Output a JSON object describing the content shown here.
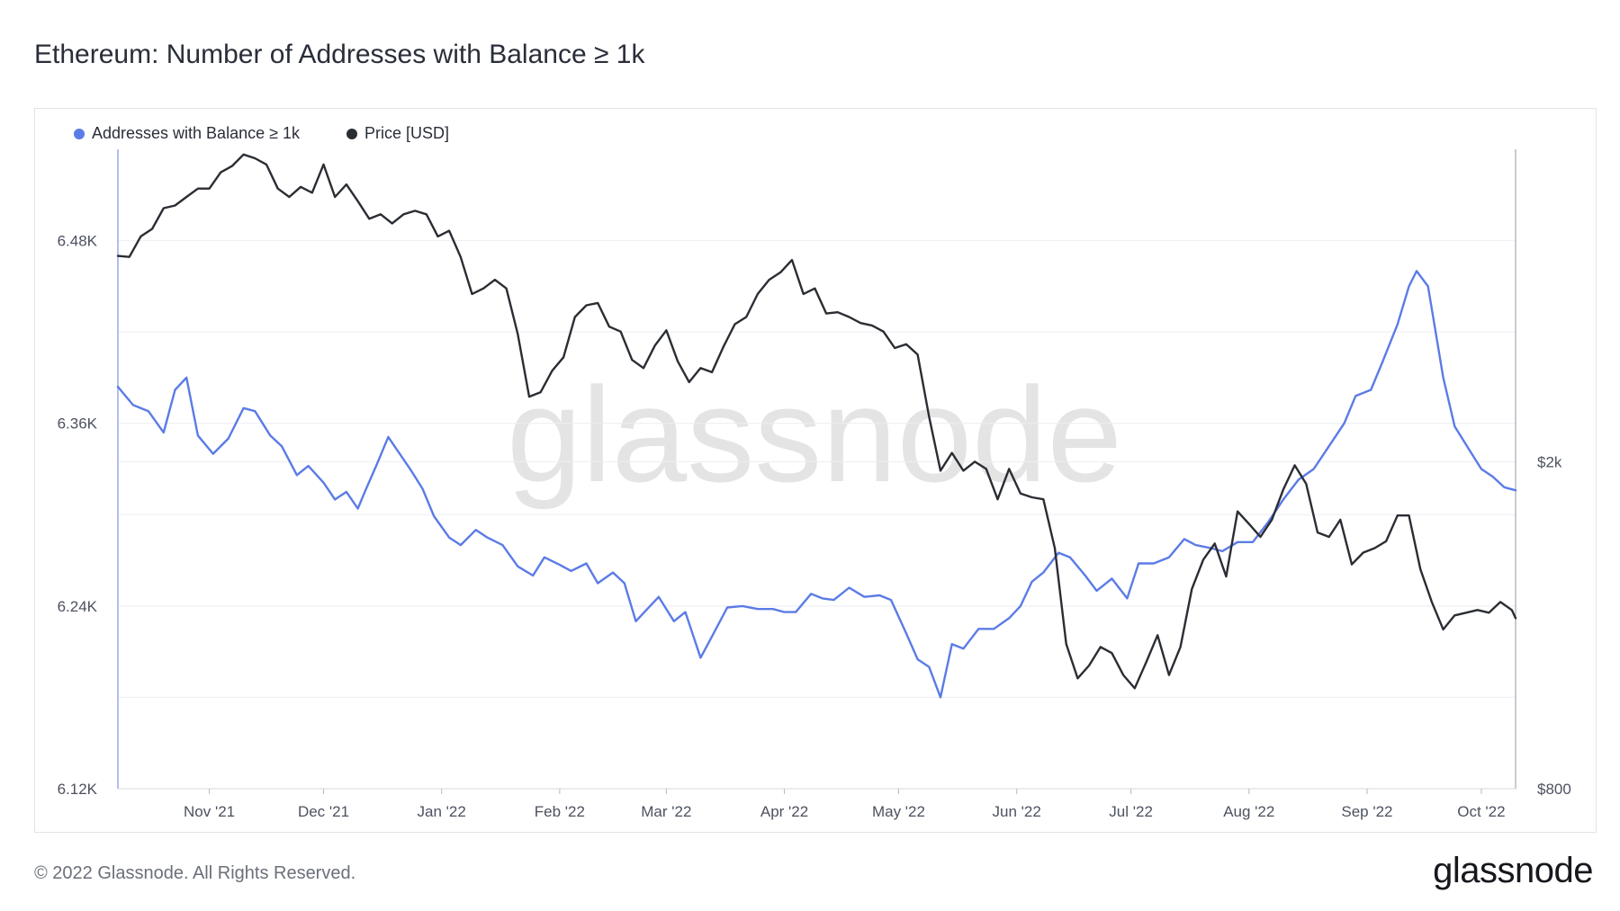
{
  "title": "Ethereum: Number of Addresses with Balance ≥ 1k",
  "footer": {
    "copyright": "© 2022 Glassnode. All Rights Reserved.",
    "brand": "glassnode"
  },
  "watermark": "glassnode",
  "colors": {
    "addresses": "#5b7be6",
    "price": "#2a2d33",
    "grid": "#eceef2",
    "axis_text": "#4d5160"
  },
  "chart_data": {
    "type": "line",
    "title": "Ethereum: Number of Addresses with Balance ≥ 1k",
    "x_start": "2021-10-08",
    "x_end": "2022-10-10",
    "x_ticks": [
      {
        "label": "Nov '21",
        "date": "2021-11-01"
      },
      {
        "label": "Dec '21",
        "date": "2021-12-01"
      },
      {
        "label": "Jan '22",
        "date": "2022-01-01"
      },
      {
        "label": "Feb '22",
        "date": "2022-02-01"
      },
      {
        "label": "Mar '22",
        "date": "2022-03-01"
      },
      {
        "label": "Apr '22",
        "date": "2022-04-01"
      },
      {
        "label": "May '22",
        "date": "2022-05-01"
      },
      {
        "label": "Jun '22",
        "date": "2022-06-01"
      },
      {
        "label": "Jul '22",
        "date": "2022-07-01"
      },
      {
        "label": "Aug '22",
        "date": "2022-08-01"
      },
      {
        "label": "Sep '22",
        "date": "2022-09-01"
      },
      {
        "label": "Oct '22",
        "date": "2022-10-01"
      }
    ],
    "y_left": {
      "ticks": [
        "6.12K",
        "6.24K",
        "6.36K",
        "6.48K"
      ],
      "tick_values": [
        6120,
        6240,
        6360,
        6480
      ],
      "range": [
        6120,
        6540
      ]
    },
    "y_right": {
      "ticks": [
        "$800",
        "$2k"
      ],
      "tick_values": [
        800,
        2000
      ],
      "scale": "log",
      "range": [
        800,
        4800
      ]
    },
    "legend_position": "top-left",
    "series": [
      {
        "name": "Addresses with Balance ≥ 1k",
        "axis": "left",
        "color": "#5b7be6",
        "points": [
          [
            "2021-10-08",
            6384
          ],
          [
            "2021-10-12",
            6372
          ],
          [
            "2021-10-16",
            6368
          ],
          [
            "2021-10-20",
            6354
          ],
          [
            "2021-10-23",
            6382
          ],
          [
            "2021-10-26",
            6390
          ],
          [
            "2021-10-29",
            6352
          ],
          [
            "2021-11-02",
            6340
          ],
          [
            "2021-11-06",
            6350
          ],
          [
            "2021-11-10",
            6370
          ],
          [
            "2021-11-13",
            6368
          ],
          [
            "2021-11-17",
            6352
          ],
          [
            "2021-11-20",
            6345
          ],
          [
            "2021-11-24",
            6326
          ],
          [
            "2021-11-27",
            6332
          ],
          [
            "2021-12-01",
            6321
          ],
          [
            "2021-12-04",
            6310
          ],
          [
            "2021-12-07",
            6315
          ],
          [
            "2021-12-10",
            6304
          ],
          [
            "2021-12-12",
            6316
          ],
          [
            "2021-12-15",
            6333
          ],
          [
            "2021-12-18",
            6351
          ],
          [
            "2021-12-21",
            6340
          ],
          [
            "2021-12-24",
            6329
          ],
          [
            "2021-12-27",
            6317
          ],
          [
            "2021-12-30",
            6299
          ],
          [
            "2022-01-03",
            6285
          ],
          [
            "2022-01-06",
            6280
          ],
          [
            "2022-01-10",
            6290
          ],
          [
            "2022-01-13",
            6285
          ],
          [
            "2022-01-17",
            6280
          ],
          [
            "2022-01-21",
            6266
          ],
          [
            "2022-01-25",
            6260
          ],
          [
            "2022-01-28",
            6272
          ],
          [
            "2022-02-01",
            6267
          ],
          [
            "2022-02-04",
            6263
          ],
          [
            "2022-02-08",
            6268
          ],
          [
            "2022-02-11",
            6255
          ],
          [
            "2022-02-15",
            6262
          ],
          [
            "2022-02-18",
            6255
          ],
          [
            "2022-02-21",
            6230
          ],
          [
            "2022-02-24",
            6238
          ],
          [
            "2022-02-27",
            6246
          ],
          [
            "2022-03-03",
            6230
          ],
          [
            "2022-03-06",
            6236
          ],
          [
            "2022-03-10",
            6206
          ],
          [
            "2022-03-13",
            6220
          ],
          [
            "2022-03-17",
            6239
          ],
          [
            "2022-03-21",
            6240
          ],
          [
            "2022-03-25",
            6238
          ],
          [
            "2022-03-29",
            6238
          ],
          [
            "2022-04-01",
            6236
          ],
          [
            "2022-04-04",
            6236
          ],
          [
            "2022-04-08",
            6248
          ],
          [
            "2022-04-11",
            6245
          ],
          [
            "2022-04-14",
            6244
          ],
          [
            "2022-04-18",
            6252
          ],
          [
            "2022-04-22",
            6246
          ],
          [
            "2022-04-26",
            6247
          ],
          [
            "2022-04-29",
            6244
          ],
          [
            "2022-05-03",
            6222
          ],
          [
            "2022-05-06",
            6205
          ],
          [
            "2022-05-09",
            6200
          ],
          [
            "2022-05-12",
            6180
          ],
          [
            "2022-05-15",
            6215
          ],
          [
            "2022-05-18",
            6212
          ],
          [
            "2022-05-22",
            6225
          ],
          [
            "2022-05-26",
            6225
          ],
          [
            "2022-05-30",
            6232
          ],
          [
            "2022-06-02",
            6240
          ],
          [
            "2022-06-05",
            6256
          ],
          [
            "2022-06-08",
            6262
          ],
          [
            "2022-06-12",
            6275
          ],
          [
            "2022-06-15",
            6272
          ],
          [
            "2022-06-19",
            6260
          ],
          [
            "2022-06-22",
            6250
          ],
          [
            "2022-06-26",
            6258
          ],
          [
            "2022-06-30",
            6245
          ],
          [
            "2022-07-03",
            6268
          ],
          [
            "2022-07-07",
            6268
          ],
          [
            "2022-07-11",
            6272
          ],
          [
            "2022-07-15",
            6284
          ],
          [
            "2022-07-18",
            6280
          ],
          [
            "2022-07-22",
            6278
          ],
          [
            "2022-07-25",
            6276
          ],
          [
            "2022-07-29",
            6282
          ],
          [
            "2022-08-02",
            6282
          ],
          [
            "2022-08-06",
            6295
          ],
          [
            "2022-08-10",
            6310
          ],
          [
            "2022-08-14",
            6323
          ],
          [
            "2022-08-18",
            6330
          ],
          [
            "2022-08-22",
            6345
          ],
          [
            "2022-08-26",
            6360
          ],
          [
            "2022-08-29",
            6378
          ],
          [
            "2022-09-02",
            6382
          ],
          [
            "2022-09-05",
            6400
          ],
          [
            "2022-09-09",
            6425
          ],
          [
            "2022-09-12",
            6450
          ],
          [
            "2022-09-14",
            6460
          ],
          [
            "2022-09-17",
            6450
          ],
          [
            "2022-09-21",
            6390
          ],
          [
            "2022-09-24",
            6358
          ],
          [
            "2022-09-28",
            6342
          ],
          [
            "2022-10-01",
            6330
          ],
          [
            "2022-10-04",
            6325
          ],
          [
            "2022-10-07",
            6318
          ],
          [
            "2022-10-10",
            6316
          ]
        ]
      },
      {
        "name": "Price [USD]",
        "axis": "right",
        "color": "#2a2d33",
        "points": [
          [
            "2021-10-08",
            3560
          ],
          [
            "2021-10-11",
            3550
          ],
          [
            "2021-10-14",
            3760
          ],
          [
            "2021-10-17",
            3840
          ],
          [
            "2021-10-20",
            4070
          ],
          [
            "2021-10-23",
            4100
          ],
          [
            "2021-10-26",
            4200
          ],
          [
            "2021-10-29",
            4300
          ],
          [
            "2021-11-01",
            4300
          ],
          [
            "2021-11-04",
            4500
          ],
          [
            "2021-11-07",
            4580
          ],
          [
            "2021-11-10",
            4730
          ],
          [
            "2021-11-13",
            4680
          ],
          [
            "2021-11-16",
            4600
          ],
          [
            "2021-11-19",
            4300
          ],
          [
            "2021-11-22",
            4200
          ],
          [
            "2021-11-25",
            4320
          ],
          [
            "2021-11-28",
            4250
          ],
          [
            "2021-12-01",
            4600
          ],
          [
            "2021-12-04",
            4200
          ],
          [
            "2021-12-07",
            4350
          ],
          [
            "2021-12-10",
            4150
          ],
          [
            "2021-12-13",
            3950
          ],
          [
            "2021-12-16",
            4000
          ],
          [
            "2021-12-19",
            3900
          ],
          [
            "2021-12-22",
            4000
          ],
          [
            "2021-12-25",
            4040
          ],
          [
            "2021-12-28",
            4000
          ],
          [
            "2021-12-31",
            3760
          ],
          [
            "2022-01-03",
            3820
          ],
          [
            "2022-01-06",
            3550
          ],
          [
            "2022-01-09",
            3200
          ],
          [
            "2022-01-12",
            3250
          ],
          [
            "2022-01-15",
            3330
          ],
          [
            "2022-01-18",
            3250
          ],
          [
            "2022-01-21",
            2860
          ],
          [
            "2022-01-24",
            2400
          ],
          [
            "2022-01-27",
            2430
          ],
          [
            "2022-01-30",
            2580
          ],
          [
            "2022-02-02",
            2680
          ],
          [
            "2022-02-05",
            3000
          ],
          [
            "2022-02-08",
            3100
          ],
          [
            "2022-02-11",
            3120
          ],
          [
            "2022-02-14",
            2920
          ],
          [
            "2022-02-17",
            2880
          ],
          [
            "2022-02-20",
            2660
          ],
          [
            "2022-02-23",
            2600
          ],
          [
            "2022-02-26",
            2770
          ],
          [
            "2022-03-01",
            2890
          ],
          [
            "2022-03-04",
            2650
          ],
          [
            "2022-03-07",
            2500
          ],
          [
            "2022-03-10",
            2600
          ],
          [
            "2022-03-13",
            2570
          ],
          [
            "2022-03-16",
            2760
          ],
          [
            "2022-03-19",
            2940
          ],
          [
            "2022-03-22",
            3000
          ],
          [
            "2022-03-25",
            3200
          ],
          [
            "2022-03-28",
            3330
          ],
          [
            "2022-03-31",
            3400
          ],
          [
            "2022-04-03",
            3520
          ],
          [
            "2022-04-06",
            3200
          ],
          [
            "2022-04-09",
            3250
          ],
          [
            "2022-04-12",
            3030
          ],
          [
            "2022-04-15",
            3040
          ],
          [
            "2022-04-18",
            3000
          ],
          [
            "2022-04-21",
            2950
          ],
          [
            "2022-04-24",
            2930
          ],
          [
            "2022-04-27",
            2880
          ],
          [
            "2022-04-30",
            2750
          ],
          [
            "2022-05-03",
            2780
          ],
          [
            "2022-05-06",
            2700
          ],
          [
            "2022-05-09",
            2270
          ],
          [
            "2022-05-12",
            1950
          ],
          [
            "2022-05-15",
            2050
          ],
          [
            "2022-05-18",
            1950
          ],
          [
            "2022-05-21",
            2000
          ],
          [
            "2022-05-24",
            1960
          ],
          [
            "2022-05-27",
            1800
          ],
          [
            "2022-05-30",
            1960
          ],
          [
            "2022-06-02",
            1830
          ],
          [
            "2022-06-05",
            1810
          ],
          [
            "2022-06-08",
            1800
          ],
          [
            "2022-06-11",
            1570
          ],
          [
            "2022-06-14",
            1200
          ],
          [
            "2022-06-17",
            1090
          ],
          [
            "2022-06-20",
            1130
          ],
          [
            "2022-06-23",
            1190
          ],
          [
            "2022-06-26",
            1170
          ],
          [
            "2022-06-29",
            1100
          ],
          [
            "2022-07-02",
            1060
          ],
          [
            "2022-07-05",
            1140
          ],
          [
            "2022-07-08",
            1230
          ],
          [
            "2022-07-11",
            1100
          ],
          [
            "2022-07-14",
            1190
          ],
          [
            "2022-07-17",
            1400
          ],
          [
            "2022-07-20",
            1520
          ],
          [
            "2022-07-23",
            1590
          ],
          [
            "2022-07-26",
            1450
          ],
          [
            "2022-07-29",
            1740
          ],
          [
            "2022-08-01",
            1680
          ],
          [
            "2022-08-04",
            1620
          ],
          [
            "2022-08-07",
            1700
          ],
          [
            "2022-08-10",
            1850
          ],
          [
            "2022-08-13",
            1980
          ],
          [
            "2022-08-16",
            1880
          ],
          [
            "2022-08-19",
            1640
          ],
          [
            "2022-08-22",
            1620
          ],
          [
            "2022-08-25",
            1700
          ],
          [
            "2022-08-28",
            1500
          ],
          [
            "2022-08-31",
            1550
          ],
          [
            "2022-09-03",
            1570
          ],
          [
            "2022-09-06",
            1600
          ],
          [
            "2022-09-09",
            1720
          ],
          [
            "2022-09-12",
            1720
          ],
          [
            "2022-09-15",
            1480
          ],
          [
            "2022-09-18",
            1350
          ],
          [
            "2022-09-21",
            1250
          ],
          [
            "2022-09-24",
            1300
          ],
          [
            "2022-09-27",
            1310
          ],
          [
            "2022-09-30",
            1320
          ],
          [
            "2022-10-03",
            1310
          ],
          [
            "2022-10-06",
            1350
          ],
          [
            "2022-10-09",
            1320
          ],
          [
            "2022-10-10",
            1290
          ]
        ]
      }
    ]
  }
}
